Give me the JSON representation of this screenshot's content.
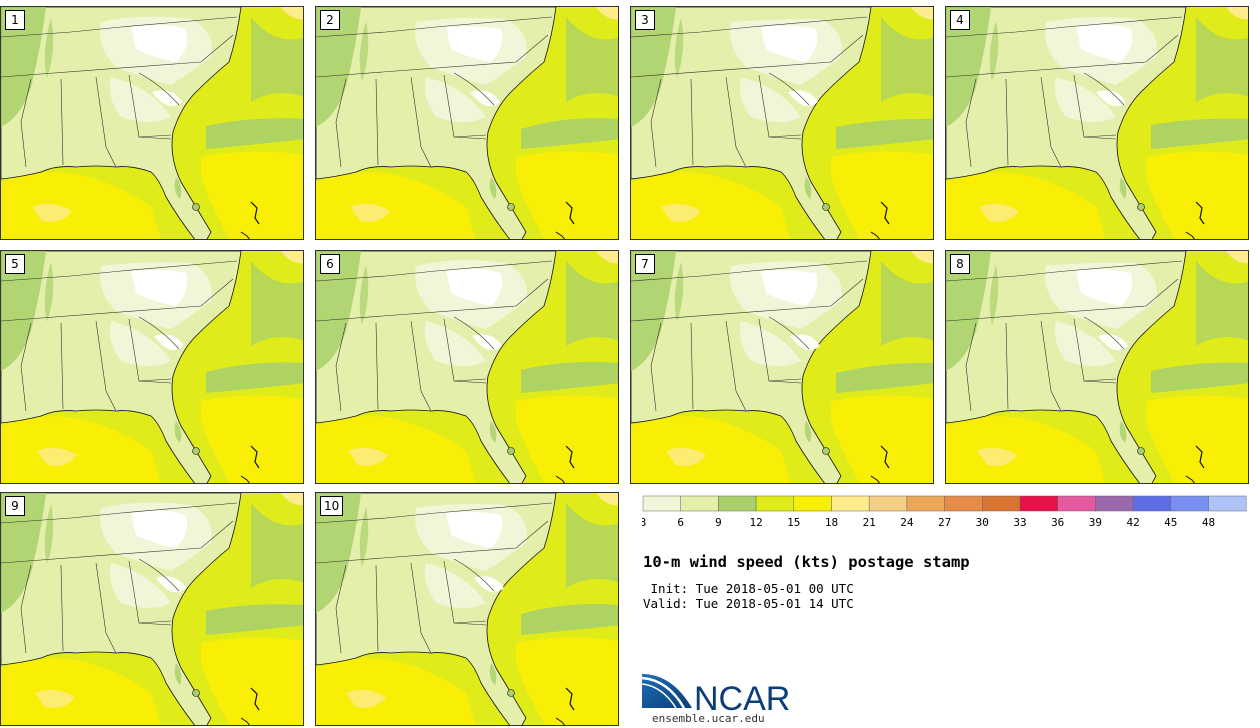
{
  "title": "10-m wind speed (kts) postage stamp",
  "init_line": " Init: Tue 2018-05-01 00 UTC",
  "valid_line": "Valid: Tue 2018-05-01 14 UTC",
  "logo_text": "NCAR",
  "site": "ensemble.ucar.edu",
  "panels": [
    "1",
    "2",
    "3",
    "4",
    "5",
    "6",
    "7",
    "8",
    "9",
    "10"
  ],
  "colorbar": {
    "labels": [
      "3",
      "6",
      "9",
      "12",
      "15",
      "18",
      "21",
      "24",
      "27",
      "30",
      "33",
      "36",
      "39",
      "42",
      "45",
      "48"
    ],
    "colors": [
      "#f2f6d8",
      "#e3efaa",
      "#a9d06a",
      "#e0ec1a",
      "#f9ee06",
      "#fdeb8c",
      "#f4cf86",
      "#eba85a",
      "#e48c48",
      "#da7634",
      "#e81048",
      "#e45aa0",
      "#9a68ac",
      "#5e6ce8",
      "#7a90f0",
      "#aec4f8"
    ]
  },
  "map_colors": {
    "calm": "#ffffff",
    "light": "#f2f6d8",
    "land": "#e3efaa",
    "mid": "#a9d06a",
    "ocean": "#e0ec1a",
    "strong": "#f9ee06",
    "stronger": "#fdeb8c"
  }
}
